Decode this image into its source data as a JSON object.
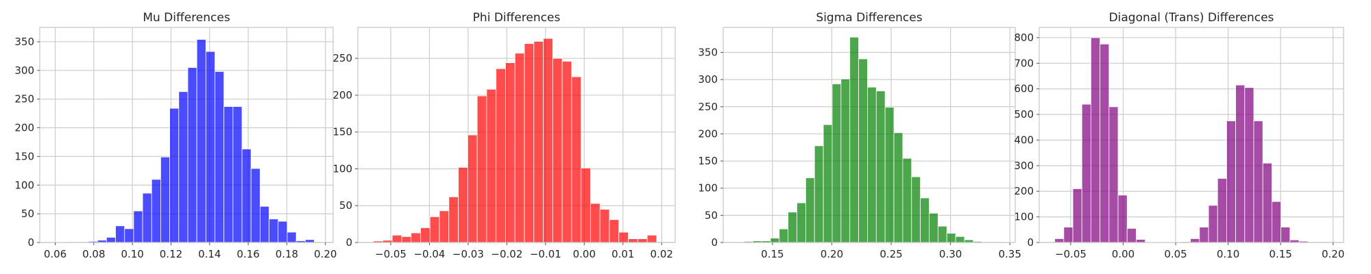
{
  "chart_data": [
    {
      "type": "bar",
      "title": "Mu Differences",
      "color": "#0000ff",
      "xlim": [
        0.052,
        0.204
      ],
      "ylim": [
        0,
        375
      ],
      "xticks": [
        0.06,
        0.08,
        0.1,
        0.12,
        0.14,
        0.16,
        0.18,
        0.2
      ],
      "xtick_labels": [
        "0.06",
        "0.08",
        "0.10",
        "0.12",
        "0.14",
        "0.16",
        "0.18",
        "0.20"
      ],
      "yticks": [
        0,
        50,
        100,
        150,
        200,
        250,
        300,
        350
      ],
      "ytick_labels": [
        "0",
        "50",
        "100",
        "150",
        "200",
        "250",
        "300",
        "350"
      ],
      "bin_start": 0.0585,
      "bin_width": 0.00468,
      "counts": [
        1,
        0,
        0,
        0,
        2,
        4,
        9,
        29,
        24,
        55,
        86,
        110,
        149,
        234,
        263,
        305,
        354,
        333,
        298,
        237,
        237,
        163,
        129,
        63,
        41,
        37,
        18,
        3,
        5
      ]
    },
    {
      "type": "bar",
      "title": "Phi Differences",
      "color": "#ff0000",
      "xlim": [
        -0.0585,
        0.0235
      ],
      "ylim": [
        0,
        292
      ],
      "xticks": [
        -0.05,
        -0.04,
        -0.03,
        -0.02,
        -0.01,
        0.0,
        0.01,
        0.02
      ],
      "xtick_labels": [
        "−0.05",
        "−0.04",
        "−0.03",
        "−0.02",
        "−0.01",
        "0.00",
        "0.01",
        "0.02"
      ],
      "yticks": [
        0,
        50,
        100,
        150,
        200,
        250
      ],
      "ytick_labels": [
        "0",
        "50",
        "100",
        "150",
        "200",
        "250"
      ],
      "bin_start": -0.0545,
      "bin_width": 0.00244,
      "counts": [
        2,
        3,
        10,
        8,
        13,
        20,
        35,
        43,
        62,
        102,
        146,
        199,
        208,
        236,
        244,
        257,
        270,
        273,
        277,
        250,
        246,
        225,
        101,
        53,
        45,
        31,
        14,
        5,
        5,
        10
      ]
    },
    {
      "type": "bar",
      "title": "Sigma Differences",
      "color": "#008000",
      "xlim": [
        0.1085,
        0.3545
      ],
      "ylim": [
        0,
        396
      ],
      "xticks": [
        0.15,
        0.2,
        0.25,
        0.3,
        0.35
      ],
      "xtick_labels": [
        "0.15",
        "0.20",
        "0.25",
        "0.30",
        "0.35"
      ],
      "yticks": [
        0,
        50,
        100,
        150,
        200,
        250,
        300,
        350
      ],
      "ytick_labels": [
        "0",
        "50",
        "100",
        "150",
        "200",
        "250",
        "300",
        "350"
      ],
      "bin_start": 0.126,
      "bin_width": 0.00743,
      "counts": [
        2,
        3,
        3,
        8,
        25,
        56,
        73,
        119,
        178,
        217,
        292,
        301,
        378,
        338,
        286,
        279,
        249,
        202,
        155,
        121,
        82,
        54,
        30,
        17,
        11,
        5,
        2,
        0,
        0,
        0,
        1
      ]
    },
    {
      "type": "bar",
      "title": "Diagonal (Trans) Differences",
      "color": "#800080",
      "xlim": [
        -0.08,
        0.21
      ],
      "ylim": [
        0,
        840
      ],
      "xticks": [
        -0.05,
        0.0,
        0.05,
        0.1,
        0.15,
        0.2
      ],
      "xtick_labels": [
        "−0.05",
        "0.00",
        "0.05",
        "0.10",
        "0.15",
        "0.20"
      ],
      "yticks": [
        0,
        100,
        200,
        300,
        400,
        500,
        600,
        700,
        800
      ],
      "ytick_labels": [
        "0",
        "100",
        "200",
        "300",
        "400",
        "500",
        "600",
        "700",
        "800"
      ],
      "bin_start": -0.0652,
      "bin_width": 0.00862,
      "counts": [
        15,
        60,
        210,
        540,
        800,
        775,
        530,
        185,
        55,
        12,
        2,
        2,
        2,
        2,
        3,
        15,
        60,
        145,
        250,
        475,
        615,
        605,
        475,
        310,
        160,
        60,
        10,
        5
      ]
    }
  ]
}
